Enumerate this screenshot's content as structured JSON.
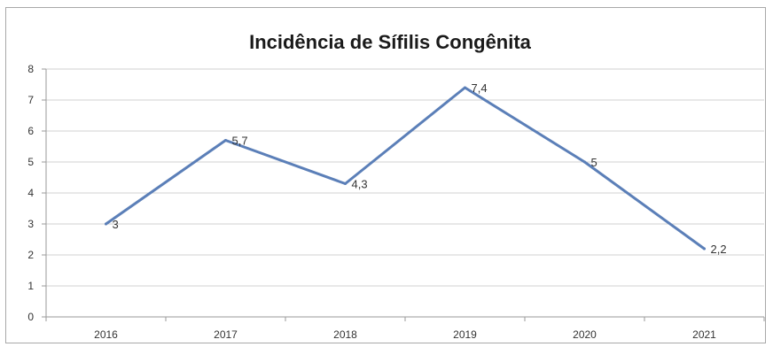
{
  "chart_data": {
    "type": "line",
    "title": "Incidência de Sífilis Congênita",
    "xlabel": "",
    "ylabel": "",
    "categories": [
      "2016",
      "2017",
      "2018",
      "2019",
      "2020",
      "2021"
    ],
    "series": [
      {
        "values": [
          3,
          5.7,
          4.3,
          7.4,
          5,
          2.2
        ],
        "labels": [
          "3",
          "5,7",
          "4,3",
          "7,4",
          "5",
          "2,2"
        ],
        "color": "#5b7fb8"
      }
    ],
    "ylim": [
      0,
      8
    ],
    "yticks": [
      "0",
      "1",
      "2",
      "3",
      "4",
      "5",
      "6",
      "7",
      "8"
    ],
    "grid": true,
    "legend": "none"
  }
}
